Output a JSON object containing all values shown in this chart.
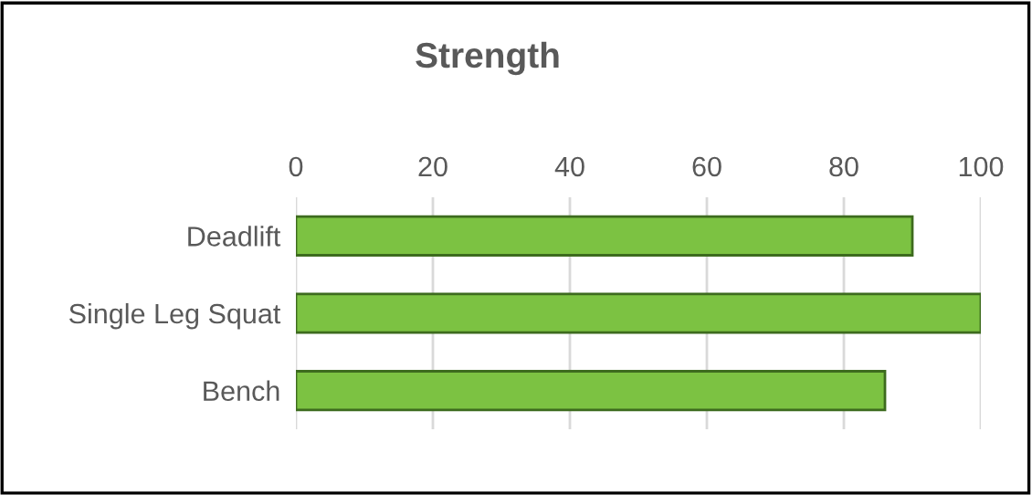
{
  "chart_data": {
    "type": "bar",
    "orientation": "horizontal",
    "title": "Strength",
    "categories": [
      "Deadlift",
      "Single Leg Squat",
      "Bench"
    ],
    "values": [
      90,
      100,
      86
    ],
    "color": "#7cc242",
    "xlim": [
      0,
      100
    ],
    "xticks": [
      0,
      20,
      40,
      60,
      80,
      100
    ],
    "grid": "x"
  }
}
